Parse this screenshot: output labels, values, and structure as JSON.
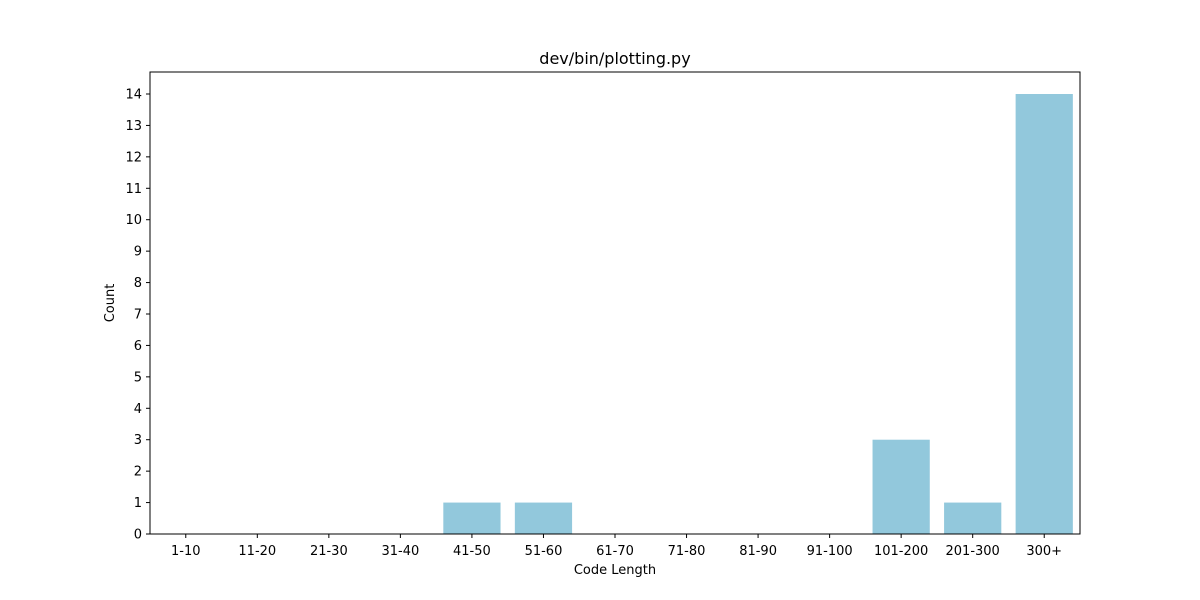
{
  "chart_data": {
    "type": "bar",
    "title": "dev/bin/plotting.py",
    "xlabel": "Code Length",
    "ylabel": "Count",
    "categories": [
      "1-10",
      "11-20",
      "21-30",
      "31-40",
      "41-50",
      "51-60",
      "61-70",
      "71-80",
      "81-90",
      "91-100",
      "101-200",
      "201-300",
      "300+"
    ],
    "values": [
      0,
      0,
      0,
      0,
      1,
      1,
      0,
      0,
      0,
      0,
      3,
      1,
      14
    ],
    "ylim": [
      0,
      14.7
    ],
    "yticks": [
      0,
      1,
      2,
      3,
      4,
      5,
      6,
      7,
      8,
      9,
      10,
      11,
      12,
      13,
      14
    ],
    "grid": false,
    "bar_color": "#92c8dc"
  }
}
